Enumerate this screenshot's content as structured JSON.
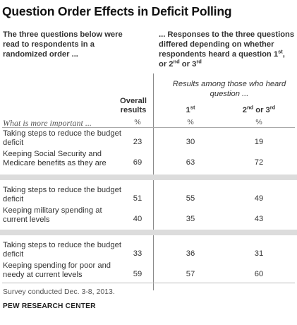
{
  "title": "Question Order Effects in Deficit Polling",
  "intro_left": "The three questions below were read to respondents in a randomized order ...",
  "intro_right": {
    "pre": "... Responses to the three questions differed depending on whether respondents heard a question 1",
    "sup1": "st",
    "mid": ",",
    "line2_pre": "or 2",
    "sup2": "nd",
    "line2_mid": " or 3",
    "sup3": "rd"
  },
  "subhead": "Results among those who heard question ...",
  "columns": {
    "overall": "Overall results",
    "first": "1",
    "first_sup": "st",
    "second_third_a": "2",
    "second_third_sup_a": "nd",
    "second_third_b": " or 3",
    "second_third_sup_b": "rd"
  },
  "row_header": "What is more important ...",
  "pct_symbol": "%",
  "chart_data": {
    "type": "table",
    "groups": [
      {
        "rows": [
          {
            "label": "Taking steps to reduce the budget deficit",
            "overall": 23,
            "first": 30,
            "second_third": 19
          },
          {
            "label": "Keeping Social Security and Medicare benefits as they are",
            "overall": 69,
            "first": 63,
            "second_third": 72
          }
        ]
      },
      {
        "rows": [
          {
            "label": "Taking steps to reduce the budget deficit",
            "overall": 51,
            "first": 55,
            "second_third": 49
          },
          {
            "label": "Keeping military spending at current levels",
            "overall": 40,
            "first": 35,
            "second_third": 43
          }
        ]
      },
      {
        "rows": [
          {
            "label": "Taking steps to reduce the budget deficit",
            "overall": 33,
            "first": 36,
            "second_third": 31
          },
          {
            "label": "Keeping spending for poor and needy at current levels",
            "overall": 59,
            "first": 57,
            "second_third": 60
          }
        ]
      }
    ]
  },
  "note": "Survey conducted Dec. 3-8, 2013.",
  "source": "PEW RESEARCH CENTER"
}
